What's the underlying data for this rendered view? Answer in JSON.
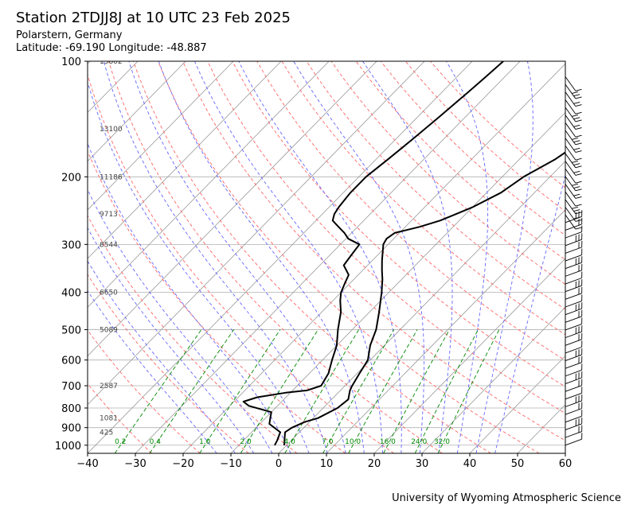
{
  "header": {
    "title": "Station 2TDJJ8J at 10 UTC 23 Feb 2025",
    "location": "Polarstern, Germany",
    "coords": "Latitude: -69.190 Longitude: -48.887"
  },
  "footer": {
    "credit": "University of Wyoming Atmospheric Science"
  },
  "colors": {
    "dry_adiabat": "#ff6666",
    "moist_adiabat": "#6666ff",
    "mixing_ratio": "#008800",
    "isotherm": "#999999",
    "profile": "#000000"
  },
  "chart_data": {
    "type": "skew-t",
    "xlim": [
      -40,
      60
    ],
    "ylim": [
      1050,
      100
    ],
    "y_scale": "log",
    "grid": true,
    "x_ticks": [
      -40,
      -30,
      -20,
      -10,
      0,
      10,
      20,
      30,
      40,
      50,
      60
    ],
    "y_ticks": [
      100,
      200,
      300,
      400,
      500,
      600,
      700,
      800,
      900,
      1000
    ],
    "height_labels": [
      {
        "p": 100,
        "text": "15802"
      },
      {
        "p": 150,
        "text": "13100"
      },
      {
        "p": 200,
        "text": "11186"
      },
      {
        "p": 250,
        "text": "9713"
      },
      {
        "p": 300,
        "text": "8544"
      },
      {
        "p": 400,
        "text": "6650"
      },
      {
        "p": 500,
        "text": "5089"
      },
      {
        "p": 700,
        "text": "2587"
      },
      {
        "p": 850,
        "text": "1081"
      },
      {
        "p": 925,
        "text": "425"
      }
    ],
    "mixing_ratio_labels": [
      "0.2",
      "0.4",
      "1.0",
      "2.0",
      "4.0",
      "7.0",
      "10.0",
      "16.0",
      "24.0",
      "32.0"
    ],
    "mixing_ratio_values": [
      0.2,
      0.4,
      1.0,
      2.0,
      4.0,
      7.0,
      10.0,
      16.0,
      24.0,
      32.0
    ],
    "temperature_profile": [
      {
        "p": 1000,
        "t": -0.5
      },
      {
        "p": 970,
        "t": -1.5
      },
      {
        "p": 925,
        "t": -3.0
      },
      {
        "p": 900,
        "t": -2.5
      },
      {
        "p": 870,
        "t": -1.0
      },
      {
        "p": 850,
        "t": 1.0
      },
      {
        "p": 800,
        "t": 3.0
      },
      {
        "p": 760,
        "t": 3.5
      },
      {
        "p": 720,
        "t": 2.0
      },
      {
        "p": 700,
        "t": 1.5
      },
      {
        "p": 650,
        "t": 0.5
      },
      {
        "p": 600,
        "t": -0.5
      },
      {
        "p": 550,
        "t": -3.0
      },
      {
        "p": 500,
        "t": -5.0
      },
      {
        "p": 450,
        "t": -8.0
      },
      {
        "p": 400,
        "t": -11.5
      },
      {
        "p": 370,
        "t": -14.0
      },
      {
        "p": 350,
        "t": -16.0
      },
      {
        "p": 330,
        "t": -18.0
      },
      {
        "p": 300,
        "t": -21.0
      },
      {
        "p": 290,
        "t": -21.5
      },
      {
        "p": 280,
        "t": -21.0
      },
      {
        "p": 270,
        "t": -17.0
      },
      {
        "p": 260,
        "t": -14.0
      },
      {
        "p": 250,
        "t": -12.0
      },
      {
        "p": 240,
        "t": -10.0
      },
      {
        "p": 220,
        "t": -7.0
      },
      {
        "p": 200,
        "t": -5.5
      },
      {
        "p": 180,
        "t": -2.5
      },
      {
        "p": 160,
        "t": -0.5
      },
      {
        "p": 140,
        "t": 1.5
      },
      {
        "p": 120,
        "t": 4.0
      },
      {
        "p": 110,
        "t": 5.0
      },
      {
        "p": 100,
        "t": 6.5
      }
    ],
    "dewpoint_profile": [
      {
        "p": 1000,
        "t": -2.5
      },
      {
        "p": 970,
        "t": -3.0
      },
      {
        "p": 925,
        "t": -4.0
      },
      {
        "p": 880,
        "t": -8.0
      },
      {
        "p": 850,
        "t": -9.0
      },
      {
        "p": 820,
        "t": -10.0
      },
      {
        "p": 790,
        "t": -16.0
      },
      {
        "p": 770,
        "t": -18.0
      },
      {
        "p": 750,
        "t": -16.0
      },
      {
        "p": 730,
        "t": -11.0
      },
      {
        "p": 720,
        "t": -7.0
      },
      {
        "p": 700,
        "t": -5.0
      },
      {
        "p": 650,
        "t": -6.0
      },
      {
        "p": 600,
        "t": -8.0
      },
      {
        "p": 550,
        "t": -10.0
      },
      {
        "p": 500,
        "t": -13.0
      },
      {
        "p": 450,
        "t": -16.0
      },
      {
        "p": 420,
        "t": -18.5
      },
      {
        "p": 400,
        "t": -20.0
      },
      {
        "p": 380,
        "t": -21.0
      },
      {
        "p": 360,
        "t": -22.0
      },
      {
        "p": 340,
        "t": -25.0
      },
      {
        "p": 320,
        "t": -25.5
      },
      {
        "p": 300,
        "t": -26.0
      },
      {
        "p": 290,
        "t": -29.5
      },
      {
        "p": 280,
        "t": -31.5
      },
      {
        "p": 270,
        "t": -34.0
      },
      {
        "p": 260,
        "t": -36.5
      },
      {
        "p": 250,
        "t": -37.5
      },
      {
        "p": 240,
        "t": -38.0
      },
      {
        "p": 220,
        "t": -38.5
      },
      {
        "p": 200,
        "t": -38.5
      },
      {
        "p": 180,
        "t": -37.5
      },
      {
        "p": 160,
        "t": -36.5
      },
      {
        "p": 140,
        "t": -35.5
      },
      {
        "p": 120,
        "t": -34.5
      },
      {
        "p": 110,
        "t": -34.0
      },
      {
        "p": 100,
        "t": -33.5
      }
    ]
  }
}
